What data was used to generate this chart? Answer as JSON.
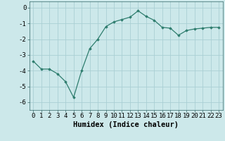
{
  "x": [
    0,
    1,
    2,
    3,
    4,
    5,
    6,
    7,
    8,
    9,
    10,
    11,
    12,
    13,
    14,
    15,
    16,
    17,
    18,
    19,
    20,
    21,
    22,
    23
  ],
  "y": [
    -3.4,
    -3.9,
    -3.9,
    -4.2,
    -4.7,
    -5.7,
    -4.0,
    -2.6,
    -2.0,
    -1.2,
    -0.9,
    -0.75,
    -0.6,
    -0.2,
    -0.55,
    -0.8,
    -1.25,
    -1.3,
    -1.75,
    -1.45,
    -1.35,
    -1.3,
    -1.25,
    -1.25
  ],
  "line_color": "#2e7d6e",
  "marker": "D",
  "marker_size": 1.8,
  "bg_color": "#cce8ea",
  "grid_color": "#aacfd4",
  "xlabel": "Humidex (Indice chaleur)",
  "xlabel_fontsize": 7.5,
  "xlabel_weight": "bold",
  "tick_labelsize": 6.5,
  "ylim": [
    -6.5,
    0.4
  ],
  "xlim": [
    -0.5,
    23.5
  ],
  "yticks": [
    0,
    -1,
    -2,
    -3,
    -4,
    -5,
    -6
  ],
  "xticks": [
    0,
    1,
    2,
    3,
    4,
    5,
    6,
    7,
    8,
    9,
    10,
    11,
    12,
    13,
    14,
    15,
    16,
    17,
    18,
    19,
    20,
    21,
    22,
    23
  ]
}
